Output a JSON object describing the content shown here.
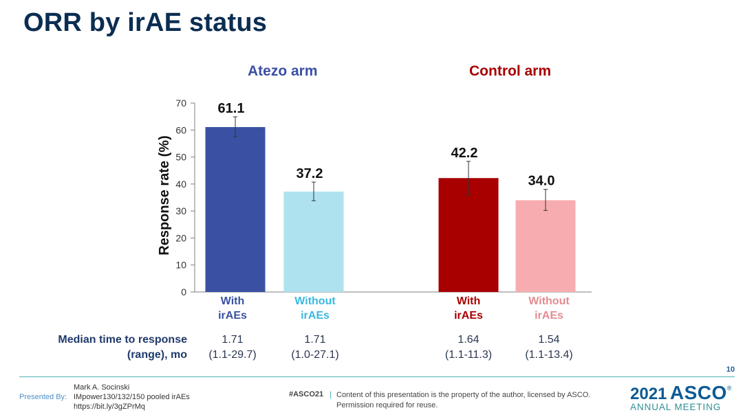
{
  "slide": {
    "title": "ORR by irAE status",
    "slide_number": "10"
  },
  "colors": {
    "title": "#0b2d52",
    "atezo_arm": "#3a4fa3",
    "control_arm": "#a80000",
    "atezo_with": "#3a51a3",
    "atezo_without": "#aee2ef",
    "control_with": "#a80000",
    "control_without": "#f7adb0",
    "without_control_label": "#e38c91",
    "atezo_without_label": "#3cb8e0"
  },
  "arms": [
    {
      "name": "Atezo arm"
    },
    {
      "name": "Control arm"
    }
  ],
  "chart_data": {
    "type": "bar",
    "title": "ORR by irAE status",
    "ylabel": "Response rate (%)",
    "xlabel": "",
    "ylim": [
      0,
      70
    ],
    "yticks": [
      0,
      10,
      20,
      30,
      40,
      50,
      60,
      70
    ],
    "grid": false,
    "groups": [
      "Atezo arm",
      "Control arm"
    ],
    "categories": [
      "With irAEs",
      "Without irAEs",
      "With irAEs",
      "Without irAEs"
    ],
    "category_lines": [
      [
        "With",
        "irAEs"
      ],
      [
        "Without",
        "irAEs"
      ],
      [
        "With",
        "irAEs"
      ],
      [
        "Without",
        "irAEs"
      ]
    ],
    "values": [
      61.1,
      37.2,
      42.2,
      34.0
    ],
    "value_labels": [
      "61.1",
      "37.2",
      "42.2",
      "34.0"
    ],
    "error_low": [
      57.5,
      33.8,
      35.8,
      30.2
    ],
    "error_high": [
      64.9,
      40.7,
      48.4,
      38.0
    ]
  },
  "median_time_to_response": {
    "label_lines": [
      "Median time to response",
      "(range), mo"
    ],
    "values": [
      {
        "median": "1.71",
        "range": "(1.1-29.7)"
      },
      {
        "median": "1.71",
        "range": "(1.0-27.1)"
      },
      {
        "median": "1.64",
        "range": "(1.1-11.3)"
      },
      {
        "median": "1.54",
        "range": "(1.1-13.4)"
      }
    ]
  },
  "footer": {
    "presented_by": "Presented By:",
    "presenter_lines": [
      "Mark A. Socinski",
      "IMpower130/132/150 pooled irAEs",
      "https://bit.ly/3gZPrMq"
    ],
    "hashtag": "#ASCO21",
    "separator": "|",
    "copyright_lines": [
      "Content of this presentation is the property of the author, licensed by ASCO.",
      "Permission required for reuse."
    ],
    "logo_year": "2021",
    "logo_name": "ASCO",
    "logo_mark": "®",
    "logo_sub": "ANNUAL MEETING"
  }
}
